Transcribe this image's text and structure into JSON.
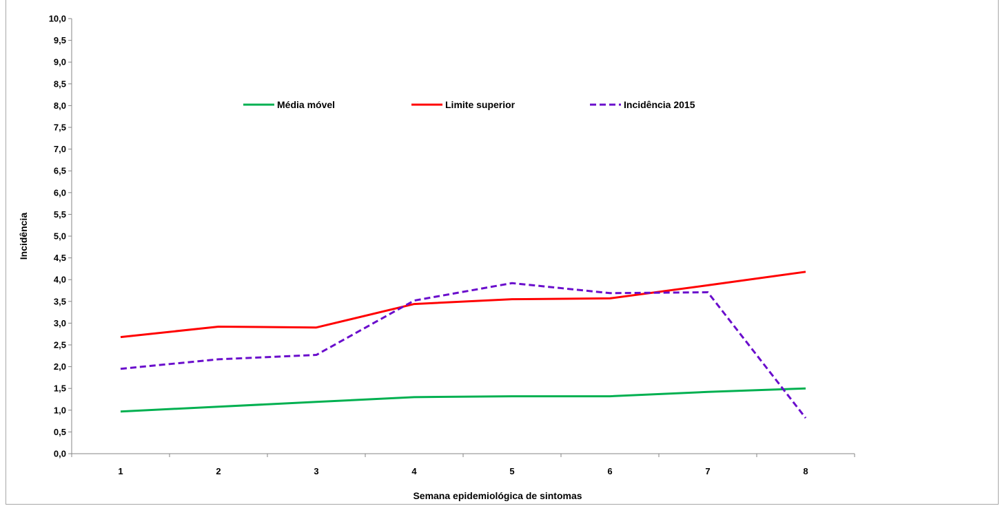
{
  "chart_data": {
    "type": "line",
    "xlabel": "Semana epidemiológica de sintomas",
    "ylabel": "Incidência",
    "categories": [
      "1",
      "2",
      "3",
      "4",
      "5",
      "6",
      "7",
      "8"
    ],
    "ylim": [
      0,
      10
    ],
    "ytick_step": 0.5,
    "ytick_labels": [
      "0,0",
      "0,5",
      "1,0",
      "1,5",
      "2,0",
      "2,5",
      "3,0",
      "3,5",
      "4,0",
      "4,5",
      "5,0",
      "5,5",
      "6,0",
      "6,5",
      "7,0",
      "7,5",
      "8,0",
      "8,5",
      "9,0",
      "9,5",
      "10,0"
    ],
    "grid": false,
    "legend_position": "top-center",
    "series": [
      {
        "name": "Média móvel",
        "color": "#00b050",
        "dash": "solid",
        "values": [
          0.97,
          1.08,
          1.19,
          1.3,
          1.32,
          1.32,
          1.42,
          1.5
        ]
      },
      {
        "name": "Limite superior",
        "color": "#ff0000",
        "dash": "solid",
        "values": [
          2.68,
          2.92,
          2.9,
          3.44,
          3.55,
          3.57,
          3.87,
          4.18
        ]
      },
      {
        "name": "Incidência 2015",
        "color": "#6a0dcc",
        "dash": "dashed",
        "values": [
          1.95,
          2.17,
          2.27,
          3.52,
          3.92,
          3.69,
          3.71,
          0.82
        ]
      }
    ]
  }
}
